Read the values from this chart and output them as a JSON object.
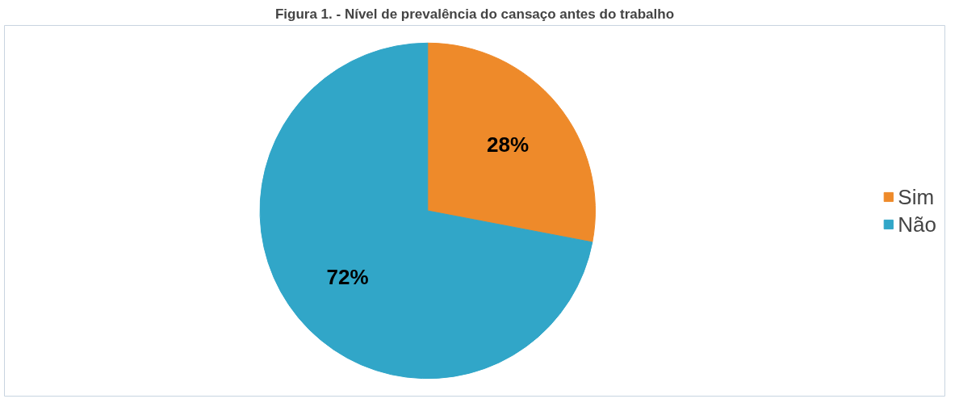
{
  "chart_data": {
    "type": "pie",
    "title": "Figura 1. - Nível de prevalência do cansaço antes do trabalho",
    "categories": [
      "Sim",
      "Não"
    ],
    "values": [
      28,
      72
    ],
    "colors": [
      "#ee8a2a",
      "#31a6c8"
    ],
    "value_labels": [
      "28%",
      "72%"
    ],
    "legend": "right"
  }
}
